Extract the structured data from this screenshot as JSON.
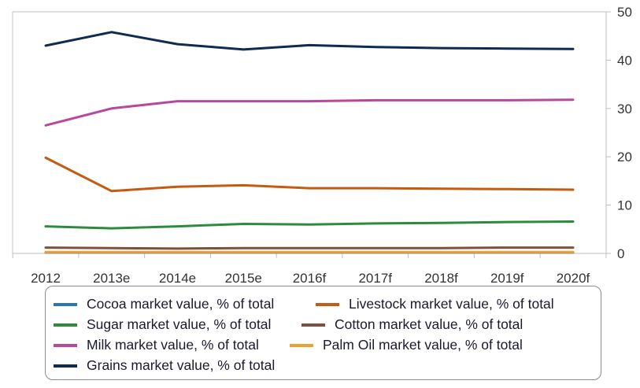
{
  "chart_data": {
    "type": "line",
    "categories": [
      "2012",
      "2013e",
      "2014e",
      "2015e",
      "2016f",
      "2017f",
      "2018f",
      "2019f",
      "2020f"
    ],
    "y_axis": {
      "side": "right",
      "ylim": [
        0,
        50
      ],
      "ticks": [
        "0",
        "10",
        "20",
        "30",
        "40",
        "50"
      ]
    },
    "grid": false,
    "legend_position": "bottom",
    "series": [
      {
        "name": "Cocoa market value, % of total",
        "color": "#2e75b6",
        "values": [
          0.2,
          0.2,
          0.2,
          0.2,
          0.2,
          0.2,
          0.2,
          0.2,
          0.2
        ]
      },
      {
        "name": "Livestock market value, % of total",
        "color": "#c55a11",
        "values": [
          19.8,
          12.9,
          13.8,
          14.1,
          13.5,
          13.5,
          13.4,
          13.3,
          13.2
        ]
      },
      {
        "name": "Sugar market value, % of total",
        "color": "#2e8b3c",
        "values": [
          5.6,
          5.2,
          5.6,
          6.1,
          6.0,
          6.2,
          6.3,
          6.5,
          6.6
        ]
      },
      {
        "name": "Cotton market value, % of total",
        "color": "#7f4f3f",
        "values": [
          1.2,
          1.1,
          1.0,
          1.1,
          1.1,
          1.1,
          1.1,
          1.2,
          1.2
        ]
      },
      {
        "name": "Milk market value, % of total",
        "color": "#b8489e",
        "values": [
          26.5,
          30.0,
          31.5,
          31.5,
          31.5,
          31.7,
          31.7,
          31.7,
          31.8
        ]
      },
      {
        "name": "Palm Oil market value, % of total",
        "color": "#f0a030",
        "values": [
          0.3,
          0.3,
          0.3,
          0.3,
          0.3,
          0.3,
          0.3,
          0.3,
          0.3
        ]
      },
      {
        "name": "Grains market value, % of total",
        "color": "#0f2b52",
        "values": [
          43.0,
          45.8,
          43.3,
          42.2,
          43.1,
          42.7,
          42.5,
          42.4,
          42.3
        ]
      }
    ]
  }
}
